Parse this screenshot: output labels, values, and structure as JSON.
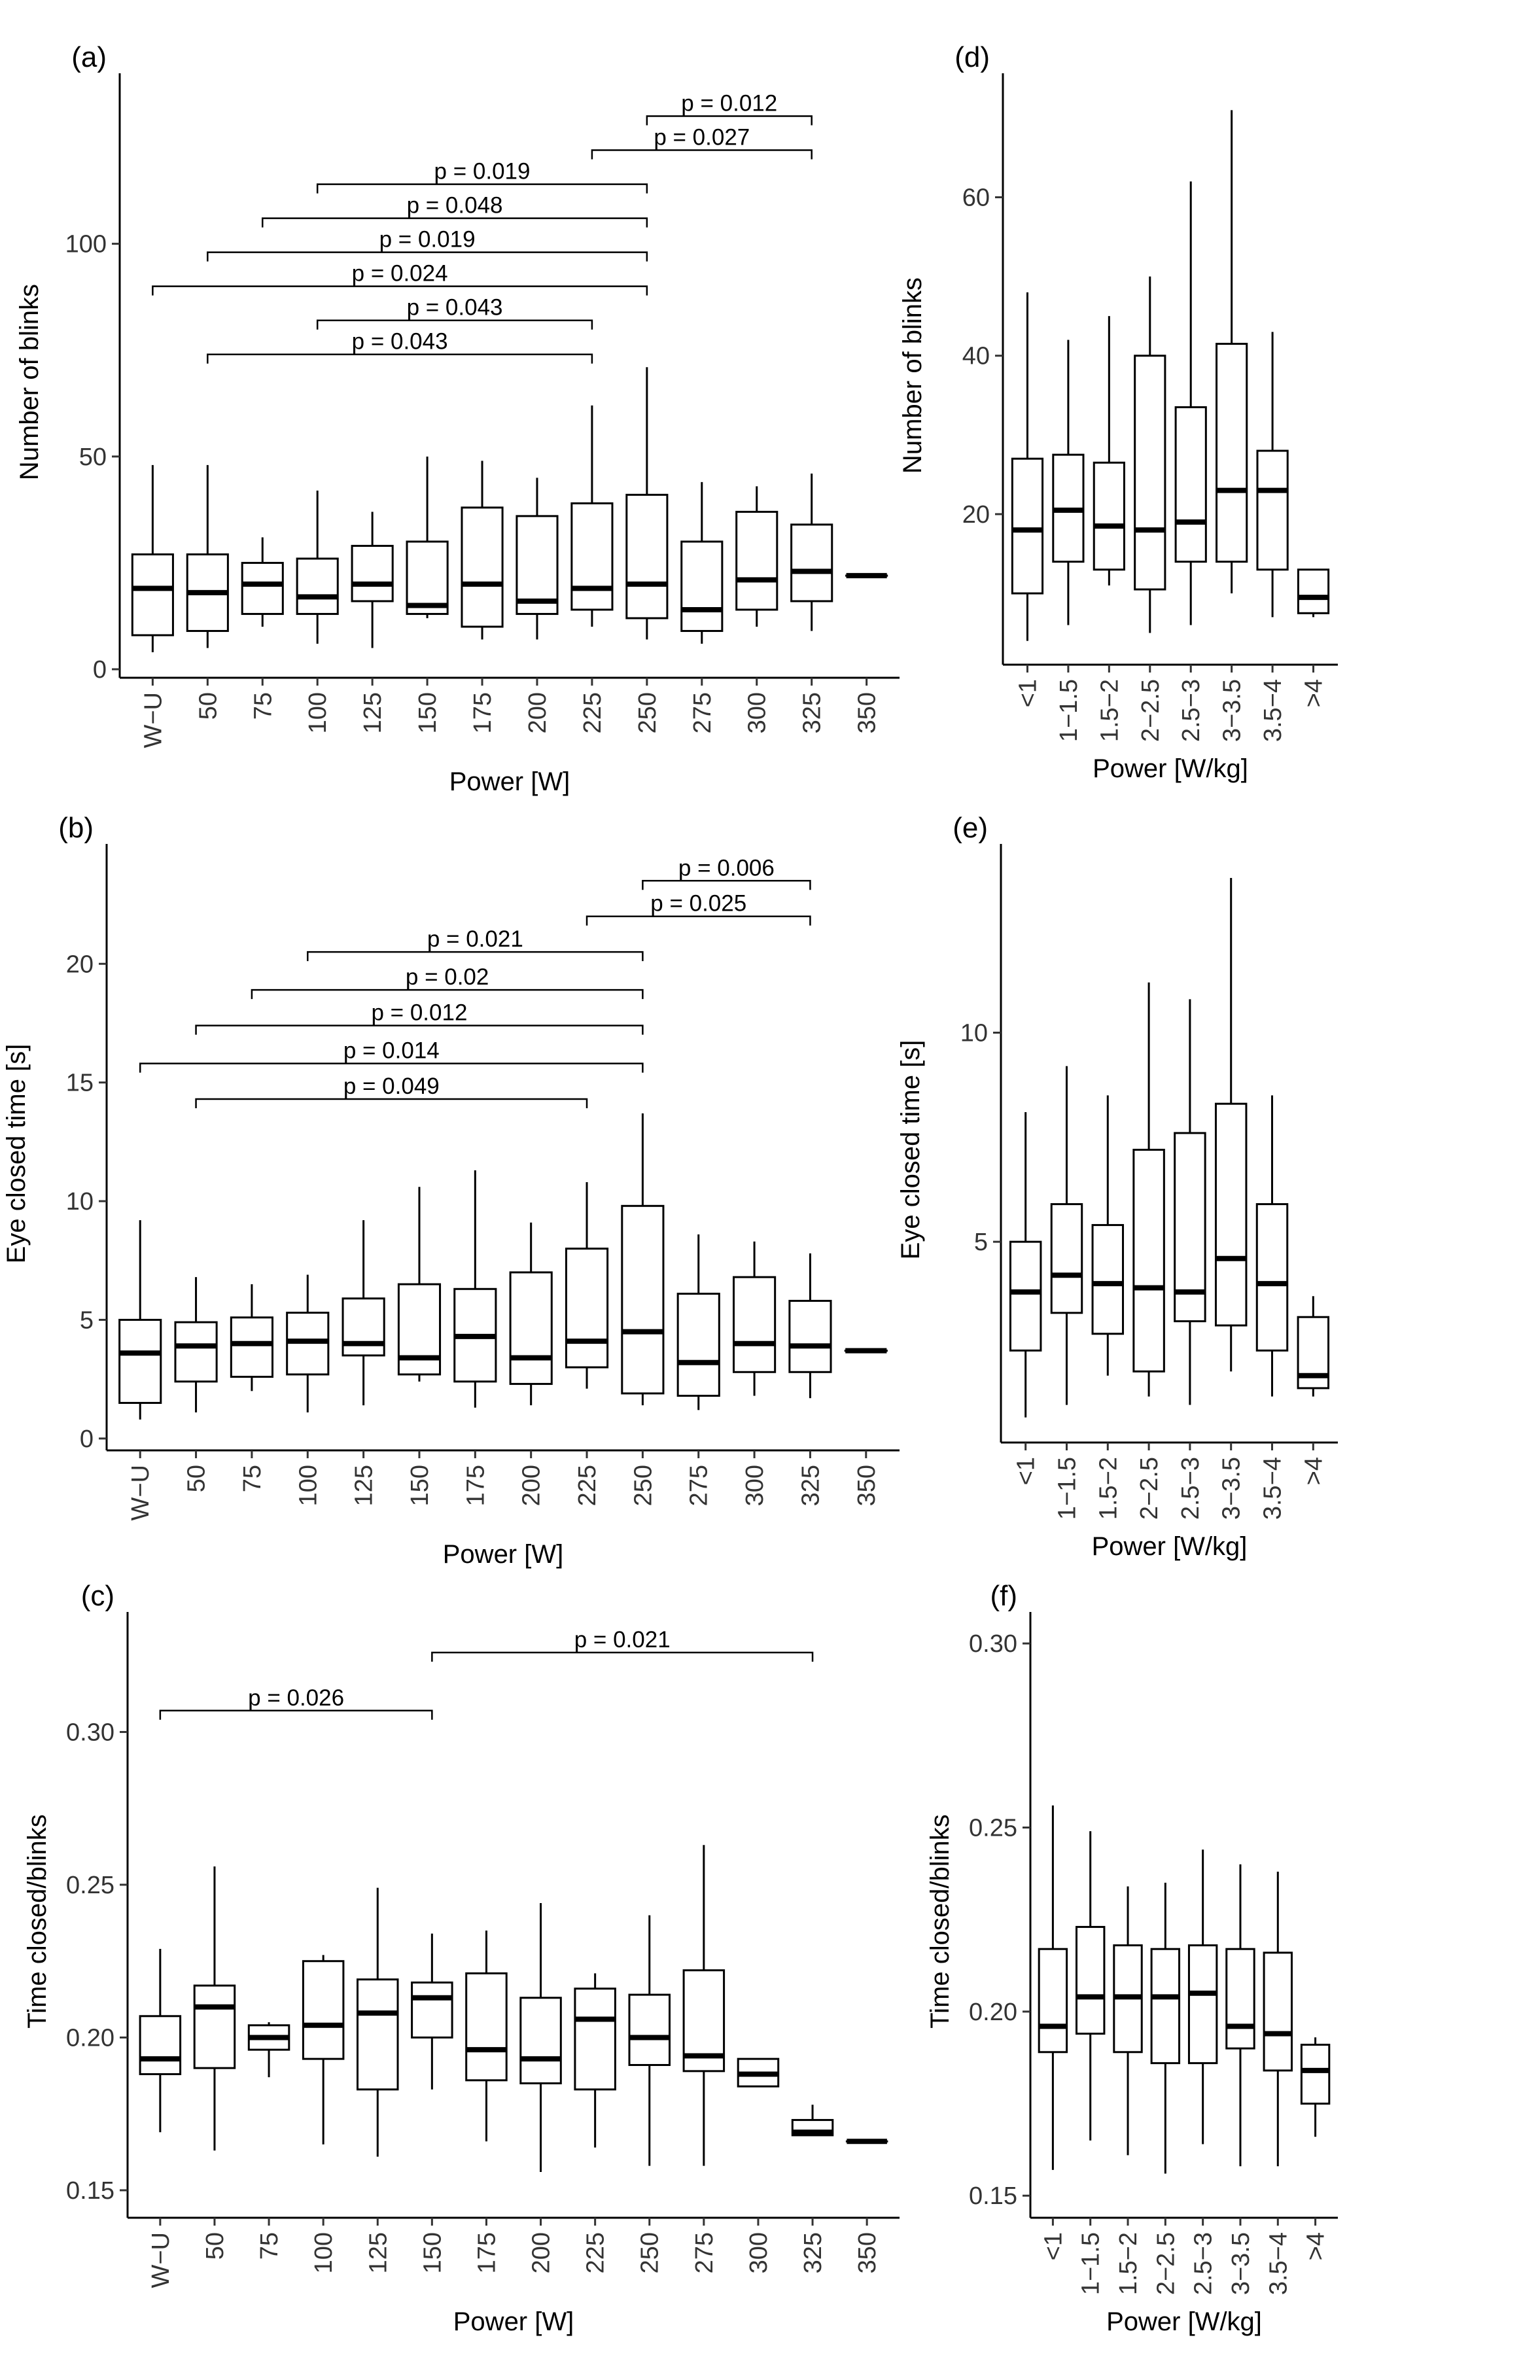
{
  "chart_data": [
    {
      "id": "a",
      "type": "boxplot",
      "panel_label": "(a)",
      "xlabel": "Power [W]",
      "ylabel": "Number of blinks",
      "ylim": [
        -2,
        137
      ],
      "yticks": [
        0,
        50,
        100
      ],
      "categories": [
        "W−U",
        "50",
        "75",
        "100",
        "125",
        "150",
        "175",
        "200",
        "225",
        "250",
        "275",
        "300",
        "325",
        "350"
      ],
      "boxes": [
        {
          "min": 4,
          "q1": 8,
          "median": 19,
          "q3": 27,
          "max": 48
        },
        {
          "min": 5,
          "q1": 9,
          "median": 18,
          "q3": 27,
          "max": 48
        },
        {
          "min": 10,
          "q1": 13,
          "median": 20,
          "q3": 25,
          "max": 31
        },
        {
          "min": 6,
          "q1": 13,
          "median": 17,
          "q3": 26,
          "max": 42
        },
        {
          "min": 5,
          "q1": 16,
          "median": 20,
          "q3": 29,
          "max": 37
        },
        {
          "min": 12,
          "q1": 13,
          "median": 15,
          "q3": 30,
          "max": 50
        },
        {
          "min": 7,
          "q1": 10,
          "median": 20,
          "q3": 38,
          "max": 49
        },
        {
          "min": 7,
          "q1": 13,
          "median": 16,
          "q3": 36,
          "max": 45
        },
        {
          "min": 10,
          "q1": 14,
          "median": 19,
          "q3": 39,
          "max": 62
        },
        {
          "min": 7,
          "q1": 12,
          "median": 20,
          "q3": 41,
          "max": 71
        },
        {
          "min": 6,
          "q1": 9,
          "median": 14,
          "q3": 30,
          "max": 44
        },
        {
          "min": 10,
          "q1": 14,
          "median": 21,
          "q3": 37,
          "max": 43
        },
        {
          "min": 9,
          "q1": 16,
          "median": 23,
          "q3": 34,
          "max": 46
        },
        {
          "min": 22,
          "q1": 22,
          "median": 22,
          "q3": 22,
          "max": 22
        }
      ],
      "comparisons": [
        {
          "from": "50",
          "to": "225",
          "y": 74,
          "label": "p = 0.043"
        },
        {
          "from": "100",
          "to": "225",
          "y": 82,
          "label": "p = 0.043"
        },
        {
          "from": "W−U",
          "to": "250",
          "y": 90,
          "label": "p = 0.024"
        },
        {
          "from": "50",
          "to": "250",
          "y": 98,
          "label": "p = 0.019"
        },
        {
          "from": "75",
          "to": "250",
          "y": 106,
          "label": "p = 0.048"
        },
        {
          "from": "100",
          "to": "250",
          "y": 114,
          "label": "p = 0.019"
        },
        {
          "from": "225",
          "to": "325",
          "y": 122,
          "label": "p = 0.027"
        },
        {
          "from": "250",
          "to": "325",
          "y": 130,
          "label": "p = 0.012"
        }
      ]
    },
    {
      "id": "b",
      "type": "boxplot",
      "panel_label": "(b)",
      "xlabel": "Power [W]",
      "ylabel": "Eye closed time [s]",
      "ylim": [
        -0.5,
        24.5
      ],
      "yticks": [
        0,
        5,
        10,
        15,
        20
      ],
      "categories": [
        "W−U",
        "50",
        "75",
        "100",
        "125",
        "150",
        "175",
        "200",
        "225",
        "250",
        "275",
        "300",
        "325",
        "350"
      ],
      "boxes": [
        {
          "min": 0.8,
          "q1": 1.5,
          "median": 3.6,
          "q3": 5.0,
          "max": 9.2
        },
        {
          "min": 1.1,
          "q1": 2.4,
          "median": 3.9,
          "q3": 4.9,
          "max": 6.8
        },
        {
          "min": 2.0,
          "q1": 2.6,
          "median": 4.0,
          "q3": 5.1,
          "max": 6.5
        },
        {
          "min": 1.1,
          "q1": 2.7,
          "median": 4.1,
          "q3": 5.3,
          "max": 6.9
        },
        {
          "min": 1.4,
          "q1": 3.5,
          "median": 4.0,
          "q3": 5.9,
          "max": 9.2
        },
        {
          "min": 2.4,
          "q1": 2.7,
          "median": 3.4,
          "q3": 6.5,
          "max": 10.6
        },
        {
          "min": 1.3,
          "q1": 2.4,
          "median": 4.3,
          "q3": 6.3,
          "max": 11.3
        },
        {
          "min": 1.4,
          "q1": 2.3,
          "median": 3.4,
          "q3": 7.0,
          "max": 9.1
        },
        {
          "min": 2.1,
          "q1": 3.0,
          "median": 4.1,
          "q3": 8.0,
          "max": 10.8
        },
        {
          "min": 1.4,
          "q1": 1.9,
          "median": 4.5,
          "q3": 9.8,
          "max": 13.7
        },
        {
          "min": 1.2,
          "q1": 1.8,
          "median": 3.2,
          "q3": 6.1,
          "max": 8.6
        },
        {
          "min": 1.8,
          "q1": 2.8,
          "median": 4.0,
          "q3": 6.8,
          "max": 8.3
        },
        {
          "min": 1.7,
          "q1": 2.8,
          "median": 3.9,
          "q3": 5.8,
          "max": 7.8
        },
        {
          "min": 3.7,
          "q1": 3.7,
          "median": 3.7,
          "q3": 3.7,
          "max": 3.7
        }
      ],
      "comparisons": [
        {
          "from": "50",
          "to": "225",
          "y": 14.3,
          "label": "p = 0.049"
        },
        {
          "from": "W−U",
          "to": "250",
          "y": 15.8,
          "label": "p = 0.014"
        },
        {
          "from": "50",
          "to": "250",
          "y": 17.4,
          "label": "p = 0.012"
        },
        {
          "from": "75",
          "to": "250",
          "y": 18.9,
          "label": "p = 0.02"
        },
        {
          "from": "100",
          "to": "250",
          "y": 20.5,
          "label": "p = 0.021"
        },
        {
          "from": "225",
          "to": "325",
          "y": 22.0,
          "label": "p = 0.025"
        },
        {
          "from": "250",
          "to": "325",
          "y": 23.5,
          "label": "p = 0.006"
        }
      ]
    },
    {
      "id": "c",
      "type": "boxplot",
      "panel_label": "(c)",
      "xlabel": "Power [W]",
      "ylabel": "Time closed/blinks",
      "ylim": [
        0.141,
        0.335
      ],
      "yticks": [
        0.15,
        0.2,
        0.25,
        0.3
      ],
      "ytick_labels": [
        "0.15",
        "0.20",
        "0.25",
        "0.30"
      ],
      "categories": [
        "W−U",
        "50",
        "75",
        "100",
        "125",
        "150",
        "175",
        "200",
        "225",
        "250",
        "275",
        "300",
        "325",
        "350"
      ],
      "boxes": [
        {
          "min": 0.169,
          "q1": 0.188,
          "median": 0.193,
          "q3": 0.207,
          "max": 0.229
        },
        {
          "min": 0.163,
          "q1": 0.19,
          "median": 0.21,
          "q3": 0.217,
          "max": 0.256
        },
        {
          "min": 0.187,
          "q1": 0.196,
          "median": 0.2,
          "q3": 0.204,
          "max": 0.205
        },
        {
          "min": 0.165,
          "q1": 0.193,
          "median": 0.204,
          "q3": 0.225,
          "max": 0.227
        },
        {
          "min": 0.161,
          "q1": 0.183,
          "median": 0.208,
          "q3": 0.219,
          "max": 0.249
        },
        {
          "min": 0.183,
          "q1": 0.2,
          "median": 0.213,
          "q3": 0.218,
          "max": 0.234
        },
        {
          "min": 0.166,
          "q1": 0.186,
          "median": 0.196,
          "q3": 0.221,
          "max": 0.235
        },
        {
          "min": 0.156,
          "q1": 0.185,
          "median": 0.193,
          "q3": 0.213,
          "max": 0.244
        },
        {
          "min": 0.164,
          "q1": 0.183,
          "median": 0.206,
          "q3": 0.216,
          "max": 0.221
        },
        {
          "min": 0.158,
          "q1": 0.191,
          "median": 0.2,
          "q3": 0.214,
          "max": 0.24
        },
        {
          "min": 0.158,
          "q1": 0.189,
          "median": 0.194,
          "q3": 0.222,
          "max": 0.263
        },
        {
          "min": 0.184,
          "q1": 0.184,
          "median": 0.188,
          "q3": 0.193,
          "max": 0.193
        },
        {
          "min": 0.168,
          "q1": 0.168,
          "median": 0.169,
          "q3": 0.173,
          "max": 0.178
        },
        {
          "min": 0.166,
          "q1": 0.166,
          "median": 0.166,
          "q3": 0.166,
          "max": 0.166
        }
      ],
      "comparisons": [
        {
          "from": "W−U",
          "to": "150",
          "y": 0.307,
          "label": "p = 0.026"
        },
        {
          "from": "150",
          "to": "325",
          "y": 0.326,
          "label": "p = 0.021"
        }
      ]
    },
    {
      "id": "d",
      "type": "boxplot",
      "panel_label": "(d)",
      "xlabel": "Power [W/kg]",
      "ylabel": "Number of blinks",
      "ylim": [
        1,
        74
      ],
      "yticks": [
        20,
        40,
        60
      ],
      "categories": [
        "<1",
        "1−1.5",
        "1.5−2",
        "2−2.5",
        "2.5−3",
        "3−3.5",
        "3.5−4",
        ">4"
      ],
      "boxes": [
        {
          "min": 4,
          "q1": 10,
          "median": 18,
          "q3": 27,
          "max": 48
        },
        {
          "min": 6,
          "q1": 14,
          "median": 20.5,
          "q3": 27.5,
          "max": 42
        },
        {
          "min": 11,
          "q1": 13,
          "median": 18.5,
          "q3": 26.5,
          "max": 45
        },
        {
          "min": 5,
          "q1": 10.5,
          "median": 18,
          "q3": 40,
          "max": 50
        },
        {
          "min": 6,
          "q1": 14,
          "median": 19,
          "q3": 33.5,
          "max": 62
        },
        {
          "min": 10,
          "q1": 14,
          "median": 23,
          "q3": 41.5,
          "max": 71
        },
        {
          "min": 7,
          "q1": 13,
          "median": 23,
          "q3": 28,
          "max": 43
        },
        {
          "min": 7,
          "q1": 7.5,
          "median": 9.5,
          "q3": 13,
          "max": 13
        }
      ]
    },
    {
      "id": "e",
      "type": "boxplot",
      "panel_label": "(e)",
      "xlabel": "Power [W/kg]",
      "ylabel": "Eye closed time [s]",
      "ylim": [
        0.2,
        14.2
      ],
      "yticks": [
        5,
        10
      ],
      "categories": [
        "<1",
        "1−1.5",
        "1.5−2",
        "2−2.5",
        "2.5−3",
        "3−3.5",
        "3.5−4",
        ">4"
      ],
      "boxes": [
        {
          "min": 0.8,
          "q1": 2.4,
          "median": 3.8,
          "q3": 5.0,
          "max": 8.1
        },
        {
          "min": 1.1,
          "q1": 3.3,
          "median": 4.2,
          "q3": 5.9,
          "max": 9.2
        },
        {
          "min": 1.8,
          "q1": 2.8,
          "median": 4.0,
          "q3": 5.4,
          "max": 8.5
        },
        {
          "min": 1.3,
          "q1": 1.9,
          "median": 3.9,
          "q3": 7.2,
          "max": 11.2
        },
        {
          "min": 1.1,
          "q1": 3.1,
          "median": 3.8,
          "q3": 7.6,
          "max": 10.8
        },
        {
          "min": 1.9,
          "q1": 3.0,
          "median": 4.6,
          "q3": 8.3,
          "max": 13.7
        },
        {
          "min": 1.3,
          "q1": 2.4,
          "median": 4.0,
          "q3": 5.9,
          "max": 8.5
        },
        {
          "min": 1.3,
          "q1": 1.5,
          "median": 1.8,
          "q3": 3.2,
          "max": 3.7
        }
      ]
    },
    {
      "id": "f",
      "type": "boxplot",
      "panel_label": "(f)",
      "xlabel": "Power [W/kg]",
      "ylabel": "Time closed/blinks",
      "ylim": [
        0.144,
        0.305
      ],
      "yticks": [
        0.15,
        0.2,
        0.25,
        0.3
      ],
      "ytick_labels": [
        "0.15",
        "0.20",
        "0.25",
        "0.30"
      ],
      "categories": [
        "<1",
        "1−1.5",
        "1.5−2",
        "2−2.5",
        "2.5−3",
        "3−3.5",
        "3.5−4",
        ">4"
      ],
      "boxes": [
        {
          "min": 0.157,
          "q1": 0.189,
          "median": 0.196,
          "q3": 0.217,
          "max": 0.256
        },
        {
          "min": 0.165,
          "q1": 0.194,
          "median": 0.204,
          "q3": 0.223,
          "max": 0.249
        },
        {
          "min": 0.161,
          "q1": 0.189,
          "median": 0.204,
          "q3": 0.218,
          "max": 0.234
        },
        {
          "min": 0.156,
          "q1": 0.186,
          "median": 0.204,
          "q3": 0.217,
          "max": 0.235
        },
        {
          "min": 0.164,
          "q1": 0.186,
          "median": 0.205,
          "q3": 0.218,
          "max": 0.244
        },
        {
          "min": 0.158,
          "q1": 0.19,
          "median": 0.196,
          "q3": 0.217,
          "max": 0.24
        },
        {
          "min": 0.158,
          "q1": 0.184,
          "median": 0.194,
          "q3": 0.216,
          "max": 0.238
        },
        {
          "min": 0.166,
          "q1": 0.175,
          "median": 0.184,
          "q3": 0.191,
          "max": 0.193
        }
      ]
    }
  ]
}
